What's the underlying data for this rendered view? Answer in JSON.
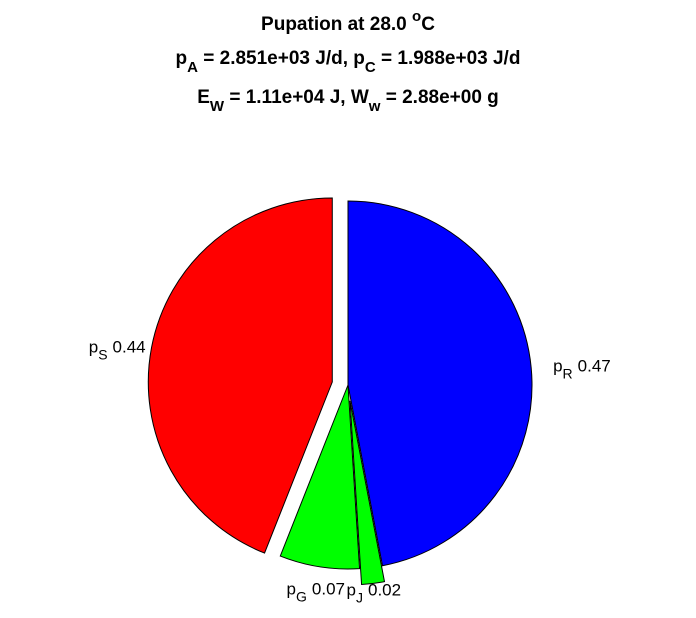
{
  "chart_data": {
    "type": "pie",
    "title": [
      [
        "Pupation at 28.0 ",
        "o",
        "C"
      ],
      [
        "p",
        "A",
        " = 2.851e+03 J/d, p",
        "C",
        " = 1.988e+03 J/d"
      ],
      [
        "E",
        "W",
        " = 1.11e+04 J, W",
        "w",
        " = 2.88e+00 g"
      ]
    ],
    "categories": [
      [
        "p",
        "R"
      ],
      [
        "p",
        "J"
      ],
      [
        "p",
        "G"
      ],
      [
        "p",
        "S"
      ]
    ],
    "values": [
      0.47,
      0.02,
      0.07,
      0.44
    ],
    "colors": [
      "#0000ff",
      "#00ff00",
      "#00ff00",
      "#ff0000"
    ],
    "explode": [
      false,
      true,
      false,
      true
    ]
  }
}
